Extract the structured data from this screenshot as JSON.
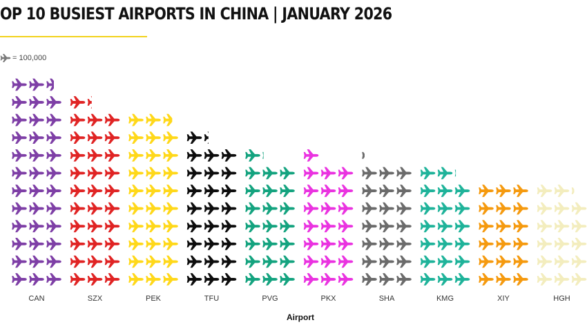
{
  "title": "OP 10 BUSIEST AIRPORTS IN CHINA | JANUARY 2026",
  "legend": {
    "unit_text": "= 100,000",
    "icon": "airplane-icon",
    "icon_color": "#7a7a7a"
  },
  "chart_data": {
    "type": "pictograph",
    "title": "OP 10 BUSIEST AIRPORTS IN CHINA | JANUARY 2026",
    "xlabel": "Airport",
    "ylabel": "",
    "unit_per_icon": 100000,
    "categories": [
      "CAN",
      "SZX",
      "PEK",
      "TFU",
      "PVG",
      "PKX",
      "SHA",
      "KMG",
      "XIY",
      "HGH"
    ],
    "values": [
      3550000,
      3130000,
      2960000,
      2530000,
      2210000,
      2200000,
      2120000,
      2010000,
      1800000,
      1720000
    ],
    "colors": [
      "#7e3fa6",
      "#e02424",
      "#ffd81a",
      "#0d0d0d",
      "#14a37f",
      "#ea33e0",
      "#6b6b6b",
      "#1fb39a",
      "#f59a0f",
      "#f3edbe"
    ],
    "grid": false
  }
}
